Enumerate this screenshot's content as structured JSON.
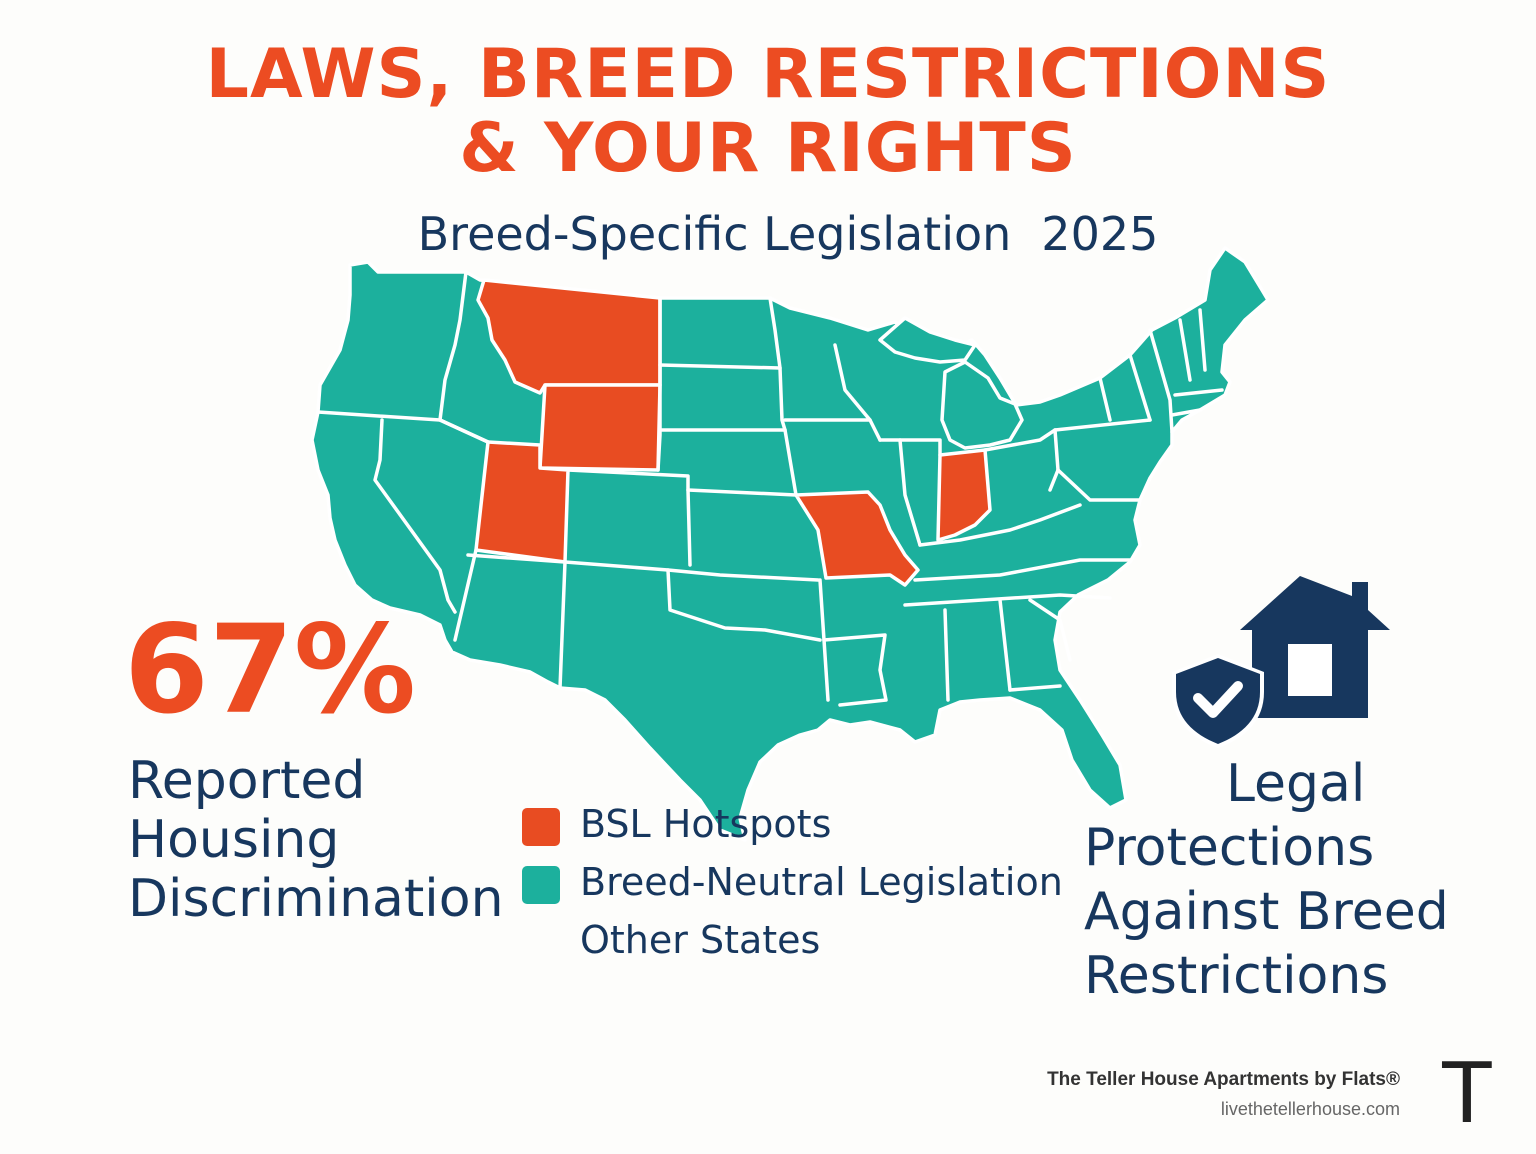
{
  "title": {
    "line1": "LAWS, BREED RESTRICTIONS",
    "line2": "& YOUR RIGHTS",
    "color": "#ec4c22"
  },
  "subtitle": {
    "text": "Breed-Specific Legislation",
    "year": "2025"
  },
  "map": {
    "region": "United States",
    "hotspot_states": [
      "Montana",
      "Wyoming",
      "Utah",
      "Missouri",
      "Indiana"
    ],
    "colors": {
      "hotspot": "#e84c22",
      "neutral": "#1cb09d",
      "borders": "#ffffff"
    }
  },
  "stat": {
    "number": "67%",
    "label_line1": "Reported",
    "label_line2": "Housing",
    "label_line3": "Discrimination",
    "color": "#ec4c22"
  },
  "legend": {
    "items": [
      {
        "label": "BSL Hotspots",
        "color": "#e84c22"
      },
      {
        "label": "Breed-Neutral Legislation",
        "color": "#1cb09d"
      },
      {
        "label": "Other States",
        "color": ""
      }
    ]
  },
  "legal": {
    "line1": "Legal",
    "line2": "Protections",
    "line3": "Against Breed",
    "line4": "Restrictions",
    "icon_color": "#17375e"
  },
  "footer": {
    "brand": "The Teller House Apartments by Flats®",
    "url": "livethetellerhouse.com",
    "logo_letter": "T"
  }
}
